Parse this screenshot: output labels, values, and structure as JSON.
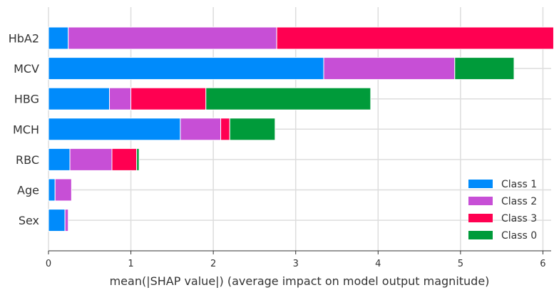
{
  "chart_data": {
    "type": "bar",
    "orientation": "horizontal",
    "stacked": true,
    "categories": [
      "HbA2",
      "MCV",
      "HBG",
      "MCH",
      "RBC",
      "Age",
      "Sex"
    ],
    "series": [
      {
        "name": "Class 1",
        "color": "#008bfb",
        "values": [
          0.24,
          3.34,
          0.74,
          1.6,
          0.26,
          0.08,
          0.2
        ]
      },
      {
        "name": "Class 2",
        "color": "#c74fd6",
        "values": [
          2.53,
          1.59,
          0.26,
          0.49,
          0.51,
          0.2,
          0.04
        ]
      },
      {
        "name": "Class 3",
        "color": "#ff0051",
        "values": [
          3.36,
          0.0,
          0.91,
          0.11,
          0.3,
          0.0,
          0.0
        ]
      },
      {
        "name": "Class 0",
        "color": "#009b3a",
        "values": [
          0.0,
          0.72,
          2.0,
          0.55,
          0.03,
          0.0,
          0.0
        ]
      }
    ],
    "xlabel": "mean(|SHAP value|) (average impact on model output magnitude)",
    "ylabel": "",
    "xlim": [
      0,
      6.1
    ],
    "xticks": [
      "0",
      "1",
      "2",
      "3",
      "4",
      "5",
      "6"
    ],
    "grid": true,
    "legend_position": "bottom-right"
  }
}
